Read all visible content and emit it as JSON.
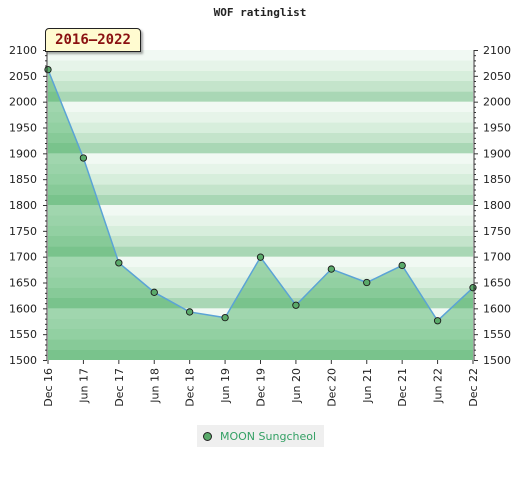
{
  "chart_data": {
    "type": "line",
    "title": "WOF ratinglist",
    "period": "2016-2022",
    "xlabel": "",
    "ylabel": "",
    "ylim": [
      1500,
      2100
    ],
    "yticks": [
      1500,
      1550,
      1600,
      1650,
      1700,
      1750,
      1800,
      1850,
      1900,
      1950,
      2000,
      2050,
      2100
    ],
    "categories": [
      "Dec 16",
      "Jun 17",
      "Dec 17",
      "Jun 18",
      "Dec 18",
      "Jun 19",
      "Dec 19",
      "Jun 20",
      "Dec 20",
      "Jun 21",
      "Dec 21",
      "Jun 22",
      "Dec 22"
    ],
    "series": [
      {
        "name": "MOON Sungcheol",
        "values": [
          2062,
          1891,
          1688,
          1631,
          1593,
          1582,
          1699,
          1606,
          1676,
          1650,
          1683,
          1576,
          1640
        ]
      }
    ],
    "grid": true,
    "legend_position": "bottom",
    "colors": {
      "line": "#5ba3d6",
      "fill": "#3faa5a",
      "marker": "#5aaa6a",
      "legend_text": "#33a064"
    }
  }
}
